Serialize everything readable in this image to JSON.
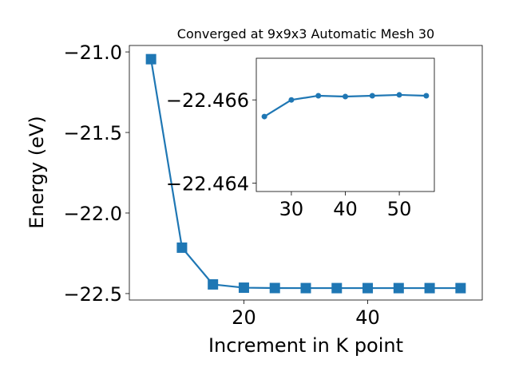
{
  "chart_data": [
    {
      "type": "line",
      "title": "Converged at 9x9x3 Automatic Mesh 30",
      "xlabel": "Increment in K point",
      "ylabel": "Energy (eV)",
      "xlim": [
        1.5,
        58.5
      ],
      "ylim": [
        -22.54,
        -20.96
      ],
      "xticks": [
        20,
        40
      ],
      "yticks": [
        -21.0,
        -21.5,
        -22.0,
        -22.5
      ],
      "ytick_labels": [
        "−21.0",
        "−21.5",
        "−22.0",
        "−22.5"
      ],
      "marker": "square",
      "color": "#1f77b4",
      "series": [
        {
          "x": [
            5,
            10,
            15,
            20,
            25,
            30,
            35,
            40,
            45,
            50,
            55
          ],
          "y": [
            -21.045,
            -22.215,
            -22.443,
            -22.4635,
            -22.4656,
            -22.466,
            -22.4661,
            -22.4661,
            -22.4661,
            -22.4661,
            -22.4661
          ]
        }
      ]
    },
    {
      "type": "line",
      "title": "",
      "xlabel": "",
      "ylabel": "",
      "xlim": [
        23.5,
        56.5
      ],
      "ylim": [
        -22.467,
        -22.4638
      ],
      "y_inverted": true,
      "xticks": [
        30,
        40,
        50
      ],
      "yticks": [
        -22.466,
        -22.464
      ],
      "ytick_labels": [
        "−22.466",
        "−22.464"
      ],
      "marker": "circle",
      "color": "#1f77b4",
      "series": [
        {
          "x": [
            25,
            30,
            35,
            40,
            45,
            50,
            55
          ],
          "y": [
            -22.4656,
            -22.466,
            -22.4661,
            -22.46608,
            -22.4661,
            -22.46612,
            -22.4661
          ]
        }
      ]
    }
  ]
}
